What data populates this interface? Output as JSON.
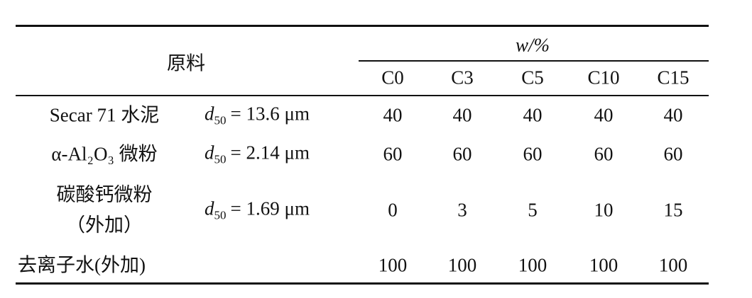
{
  "table": {
    "header": {
      "material": "原料",
      "group": "w/%",
      "columns": [
        "C0",
        "C3",
        "C5",
        "C10",
        "C15"
      ]
    },
    "rows": [
      {
        "name": [
          "Secar 71 水泥"
        ],
        "spec": {
          "symbol": "d",
          "subscript": "50",
          "text": "= 13.6 μm"
        },
        "values": [
          40,
          40,
          40,
          40,
          40
        ]
      },
      {
        "name": [
          "α-Al₂O₃ 微粉"
        ],
        "spec": {
          "symbol": "d",
          "subscript": "50",
          "text": "= 2.14 μm"
        },
        "values": [
          60,
          60,
          60,
          60,
          60
        ]
      },
      {
        "name": [
          "碳酸钙微粉",
          "（外加）"
        ],
        "spec": {
          "symbol": "d",
          "subscript": "50",
          "text": "= 1.69 μm"
        },
        "values": [
          0,
          3,
          5,
          10,
          15
        ]
      },
      {
        "name": [
          "去离子水(外加)"
        ],
        "values": [
          100,
          100,
          100,
          100,
          100
        ]
      }
    ]
  }
}
